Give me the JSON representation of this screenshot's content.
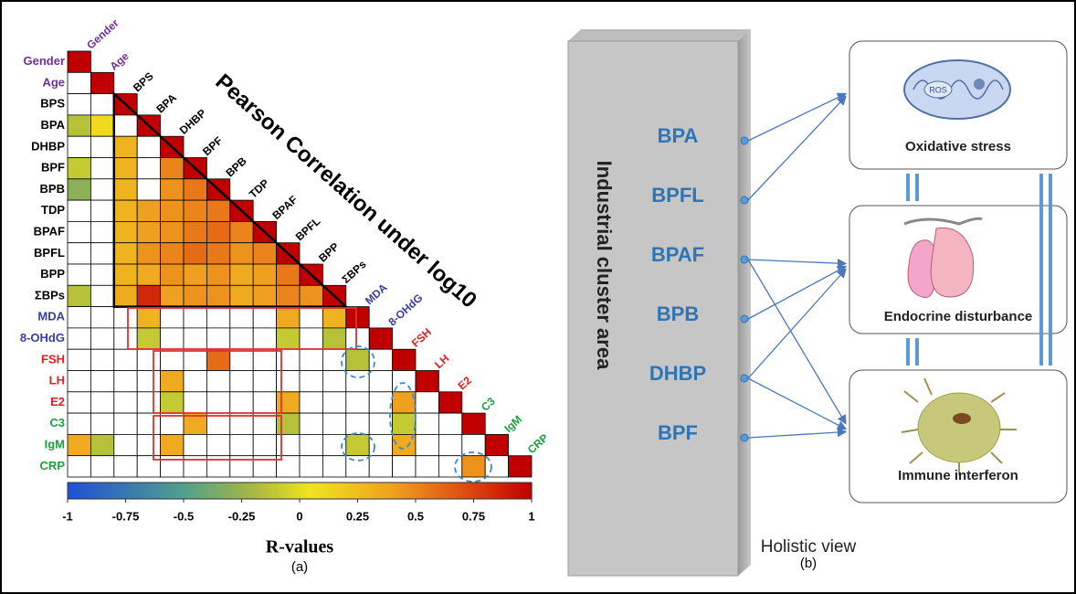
{
  "chart_data": {
    "type": "heatmap",
    "title": "Pearson Correlation under log10",
    "categories": [
      "Gender",
      "Age",
      "BPS",
      "BPA",
      "DHBP",
      "BPF",
      "BPB",
      "TDP",
      "BPAF",
      "BPFL",
      "BPP",
      "ΣBPs",
      "MDA",
      "8-OHdG",
      "FSH",
      "LH",
      "E2",
      "C3",
      "IgM",
      "CRP"
    ],
    "category_colors": [
      "#7030a0",
      "#7030a0",
      "#000000",
      "#000000",
      "#000000",
      "#000000",
      "#000000",
      "#000000",
      "#000000",
      "#000000",
      "#000000",
      "#000000",
      "#3b3ba0",
      "#3b3ba0",
      "#e02020",
      "#e02020",
      "#e02020",
      "#1aa040",
      "#1aa040",
      "#1aa040"
    ],
    "matrix": [
      [
        1
      ],
      [
        null,
        1
      ],
      [
        null,
        null,
        1
      ],
      [
        -0.15,
        0.1,
        null,
        1
      ],
      [
        null,
        null,
        0.3,
        null,
        1
      ],
      [
        -0.1,
        null,
        0.3,
        null,
        0.5,
        1
      ],
      [
        -0.3,
        null,
        0.3,
        null,
        0.45,
        0.55,
        1
      ],
      [
        null,
        null,
        0.3,
        0.4,
        0.45,
        0.5,
        0.55,
        1
      ],
      [
        null,
        null,
        0.3,
        0.4,
        0.45,
        0.55,
        0.6,
        0.5,
        1
      ],
      [
        null,
        null,
        0.3,
        0.45,
        0.5,
        0.6,
        0.55,
        0.45,
        0.5,
        1
      ],
      [
        null,
        null,
        0.3,
        0.35,
        0.45,
        0.4,
        0.45,
        0.35,
        0.4,
        0.55,
        1
      ],
      [
        -0.15,
        null,
        0.35,
        0.85,
        0.4,
        0.45,
        0.45,
        0.35,
        0.4,
        0.5,
        0.45,
        1
      ],
      [
        null,
        null,
        null,
        0.3,
        null,
        null,
        null,
        null,
        null,
        0.35,
        null,
        0.3,
        1
      ],
      [
        null,
        null,
        null,
        -0.1,
        null,
        null,
        null,
        null,
        null,
        -0.1,
        null,
        -0.15,
        null,
        1
      ],
      [
        null,
        null,
        null,
        null,
        null,
        null,
        0.6,
        null,
        null,
        null,
        null,
        null,
        -0.15,
        null,
        1
      ],
      [
        null,
        null,
        null,
        null,
        0.35,
        null,
        null,
        null,
        null,
        null,
        null,
        null,
        null,
        null,
        null,
        1
      ],
      [
        null,
        null,
        null,
        null,
        -0.1,
        null,
        null,
        null,
        null,
        0.35,
        null,
        null,
        null,
        null,
        0.4,
        null,
        1
      ],
      [
        null,
        null,
        null,
        null,
        null,
        0.35,
        null,
        null,
        null,
        -0.15,
        null,
        null,
        null,
        null,
        -0.1,
        null,
        null,
        1
      ],
      [
        0.35,
        -0.15,
        null,
        null,
        0.35,
        null,
        null,
        null,
        null,
        null,
        null,
        null,
        -0.1,
        null,
        0.35,
        null,
        null,
        null,
        1
      ],
      [
        null,
        null,
        null,
        null,
        null,
        null,
        null,
        null,
        null,
        null,
        null,
        null,
        null,
        null,
        null,
        null,
        null,
        0.45,
        null,
        1
      ]
    ],
    "clim": [
      -1,
      1
    ],
    "cticks": [
      -1,
      -0.75,
      -0.5,
      -0.25,
      0,
      0.25,
      0.5,
      0.75,
      1
    ],
    "xlabel": "R-values",
    "panel_label": "(a)"
  },
  "diagram": {
    "source_label": "Industrial cluster area",
    "sources": [
      "BPA",
      "BPFL",
      "BPAF",
      "BPB",
      "DHBP",
      "BPF"
    ],
    "targets": [
      {
        "label": "Oxidative stress",
        "icon_text": "ROS"
      },
      {
        "label": "Endocrine disturbance"
      },
      {
        "label": "Immune interferon"
      }
    ],
    "title": "Holistic view",
    "panel_label": "(b)"
  }
}
